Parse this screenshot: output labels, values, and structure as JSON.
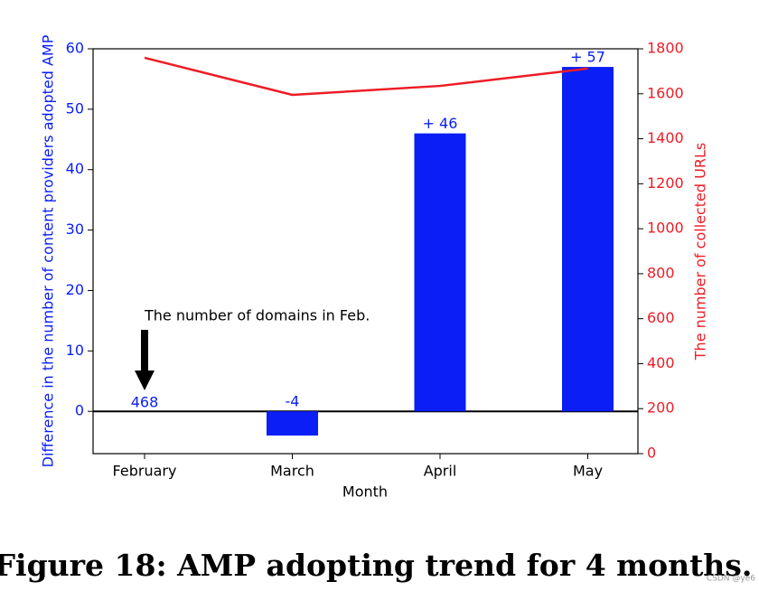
{
  "chart_data": {
    "type": "bar-line",
    "caption": "Figure 18: AMP adopting trend for 4 months.",
    "watermark": "CSDN @ye6",
    "x_label": "Month",
    "y_label": "Difference in the number of content providers adopted AMP",
    "y2_label": "The number of collected URLs",
    "categories": [
      "February",
      "March",
      "April",
      "May"
    ],
    "series": [
      {
        "type": "bar",
        "color": "#0a1ef5",
        "values": [
          0,
          -4,
          46,
          57
        ],
        "value_labels": [
          null,
          "-4",
          "+ 46",
          "+ 57"
        ]
      },
      {
        "type": "line",
        "color": "#ee1c25",
        "axis": "y2",
        "values": [
          1760,
          1595,
          1635,
          1712
        ]
      }
    ],
    "annotations": [
      "The number of domains in Feb.",
      "468"
    ],
    "ylim": [
      -7,
      60
    ],
    "yticks": [
      0,
      10,
      20,
      30,
      40,
      50,
      60
    ],
    "y_color": "#0a1ef5",
    "y2lim": [
      0,
      1800
    ],
    "y2ticks": [
      0,
      200,
      400,
      600,
      800,
      1000,
      1200,
      1400,
      1600,
      1800
    ],
    "y2_color": "#ee1c25"
  }
}
